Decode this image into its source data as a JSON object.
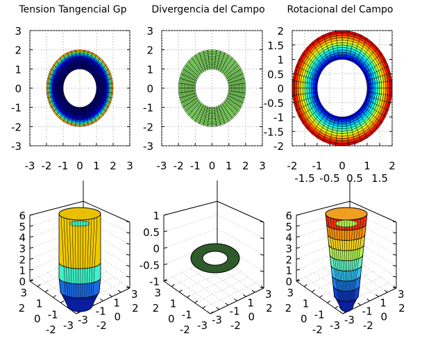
{
  "chart_data": [
    {
      "type": "surface-2d",
      "title": "Tension Tangencial Gp",
      "xlim": [
        -3,
        3
      ],
      "ylim": [
        -3,
        3
      ],
      "xticks": [
        "-3",
        "-2",
        "-1",
        "0",
        "1",
        "2",
        "3"
      ],
      "yticks": [
        "3",
        "2",
        "1",
        "0",
        "-1",
        "-2",
        "-3"
      ],
      "r_range": [
        1,
        2
      ],
      "colormap": "jet",
      "color_mode": "steep",
      "grid": true
    },
    {
      "type": "surface-2d",
      "title": "Divergencia del Campo",
      "xlim": [
        -3,
        3
      ],
      "ylim": [
        -3,
        3
      ],
      "xticks": [
        "-3",
        "-2",
        "-1",
        "0",
        "1",
        "2",
        "3"
      ],
      "yticks": [
        "3",
        "2",
        "1",
        "0",
        "-1",
        "-2",
        "-3"
      ],
      "r_range": [
        1,
        2
      ],
      "colormap": "constant",
      "color": "#90ee70",
      "grid": true
    },
    {
      "type": "surface-2d",
      "title": "Rotacional del Campo",
      "xlim": [
        -2,
        2
      ],
      "ylim": [
        -2,
        2
      ],
      "xticks": [
        "-2",
        "-1.5",
        "-1",
        "-0.5",
        "0",
        "0.5",
        "1",
        "1.5",
        "2"
      ],
      "yticks": [
        "2",
        "1.5",
        "1",
        "0.5",
        "0",
        "-0.5",
        "-1",
        "-1.5",
        "-2"
      ],
      "r_range": [
        1,
        2
      ],
      "colormap": "jet",
      "color_mode": "linear",
      "grid": true
    },
    {
      "type": "surface-3d",
      "zlim": [
        0,
        6
      ],
      "zticks": [
        "6",
        "5",
        "4",
        "3",
        "2",
        "1",
        "0"
      ],
      "xticks": [
        "3",
        "2",
        "1",
        "0",
        "-1",
        "-2",
        "-3"
      ],
      "yticks": [
        "-3",
        "-2",
        "-1",
        "0",
        "1",
        "2",
        "3"
      ],
      "shape": "cylinder"
    },
    {
      "type": "surface-3d",
      "zlim": [
        -1,
        1
      ],
      "zticks": [
        "1",
        "0.5",
        "0",
        "-0.5",
        "-1"
      ],
      "xticks": [
        "3",
        "2",
        "1",
        "0",
        "-1",
        "-2",
        "-3"
      ],
      "yticks": [
        "-3",
        "-2",
        "-1",
        "0",
        "1",
        "2",
        "3"
      ],
      "shape": "flat-ring",
      "color": "#2f5a2a"
    },
    {
      "type": "surface-3d",
      "zlim": [
        0,
        6
      ],
      "zticks": [
        "6",
        "5",
        "4",
        "3",
        "2",
        "1",
        "0"
      ],
      "xticks": [
        "3",
        "2",
        "1",
        "0",
        "-1",
        "-2",
        "-3"
      ],
      "yticks": [
        "-3",
        "-2",
        "-1",
        "0",
        "1",
        "2",
        "3"
      ],
      "shape": "cone"
    }
  ]
}
